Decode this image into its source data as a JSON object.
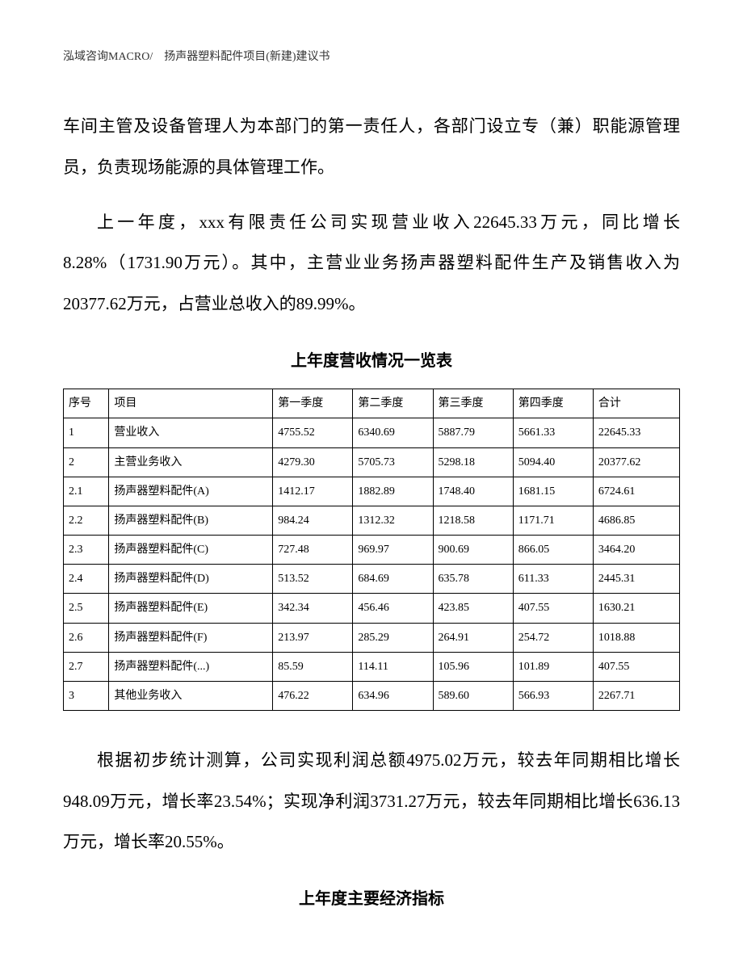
{
  "header": {
    "text": "泓域咨询MACRO/　扬声器塑料配件项目(新建)建议书"
  },
  "paragraphs": {
    "p1": "车间主管及设备管理人为本部门的第一责任人，各部门设立专（兼）职能源管理员，负责现场能源的具体管理工作。",
    "p2": "上一年度，xxx有限责任公司实现营业收入22645.33万元，同比增长8.28%（1731.90万元）。其中，主营业业务扬声器塑料配件生产及销售收入为20377.62万元，占营业总收入的89.99%。",
    "p3": "根据初步统计测算，公司实现利润总额4975.02万元，较去年同期相比增长948.09万元，增长率23.54%；实现净利润3731.27万元，较去年同期相比增长636.13万元，增长率20.55%。"
  },
  "table": {
    "title": "上年度营收情况一览表",
    "columns": [
      "序号",
      "项目",
      "第一季度",
      "第二季度",
      "第三季度",
      "第四季度",
      "合计"
    ],
    "rows": [
      [
        "1",
        "营业收入",
        "4755.52",
        "6340.69",
        "5887.79",
        "5661.33",
        "22645.33"
      ],
      [
        "2",
        "主营业务收入",
        "4279.30",
        "5705.73",
        "5298.18",
        "5094.40",
        "20377.62"
      ],
      [
        "2.1",
        "扬声器塑料配件(A)",
        "1412.17",
        "1882.89",
        "1748.40",
        "1681.15",
        "6724.61"
      ],
      [
        "2.2",
        "扬声器塑料配件(B)",
        "984.24",
        "1312.32",
        "1218.58",
        "1171.71",
        "4686.85"
      ],
      [
        "2.3",
        "扬声器塑料配件(C)",
        "727.48",
        "969.97",
        "900.69",
        "866.05",
        "3464.20"
      ],
      [
        "2.4",
        "扬声器塑料配件(D)",
        "513.52",
        "684.69",
        "635.78",
        "611.33",
        "2445.31"
      ],
      [
        "2.5",
        "扬声器塑料配件(E)",
        "342.34",
        "456.46",
        "423.85",
        "407.55",
        "1630.21"
      ],
      [
        "2.6",
        "扬声器塑料配件(F)",
        "213.97",
        "285.29",
        "264.91",
        "254.72",
        "1018.88"
      ],
      [
        "2.7",
        "扬声器塑料配件(...)",
        "85.59",
        "114.11",
        "105.96",
        "101.89",
        "407.55"
      ],
      [
        "3",
        "其他业务收入",
        "476.22",
        "634.96",
        "589.60",
        "566.93",
        "2267.71"
      ]
    ]
  },
  "section2": {
    "title": "上年度主要经济指标"
  }
}
